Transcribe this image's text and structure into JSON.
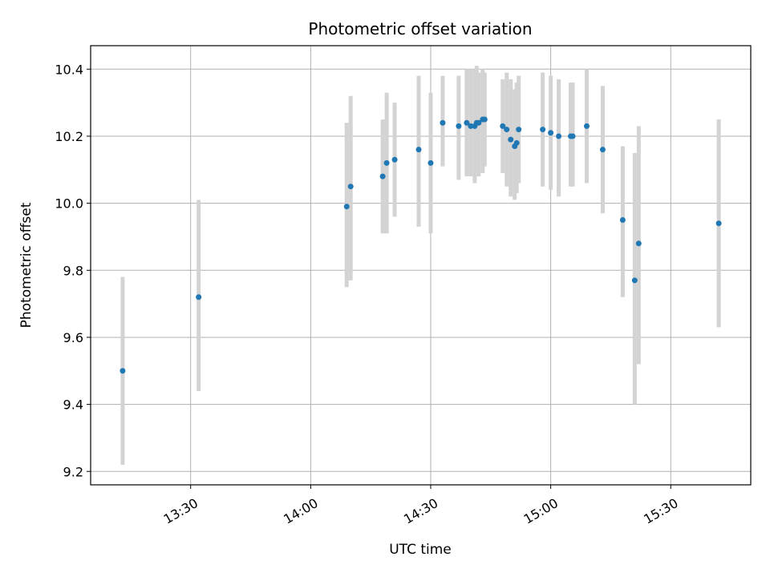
{
  "chart_data": {
    "type": "scatter",
    "title": "Photometric offset variation",
    "xlabel": "UTC time",
    "ylabel": "Photometric offset",
    "x_ticks": [
      "13:30",
      "14:00",
      "14:30",
      "15:00",
      "15:30"
    ],
    "y_ticks": [
      "9.2",
      "9.4",
      "9.6",
      "9.8",
      "10.0",
      "10.2",
      "10.4"
    ],
    "xlim": [
      "13:05",
      "15:50"
    ],
    "ylim": [
      9.16,
      10.47
    ],
    "grid": true,
    "point_color": "#1f77b4",
    "errorbar_color": "#d3d3d3",
    "points": [
      {
        "t": "13:13",
        "y": 9.5,
        "lo": 9.22,
        "hi": 9.78
      },
      {
        "t": "13:32",
        "y": 9.72,
        "lo": 9.44,
        "hi": 10.01
      },
      {
        "t": "14:09",
        "y": 9.99,
        "lo": 9.75,
        "hi": 10.24
      },
      {
        "t": "14:10",
        "y": 10.05,
        "lo": 9.77,
        "hi": 10.32
      },
      {
        "t": "14:18",
        "y": 10.08,
        "lo": 9.91,
        "hi": 10.25
      },
      {
        "t": "14:19",
        "y": 10.12,
        "lo": 9.91,
        "hi": 10.33
      },
      {
        "t": "14:21",
        "y": 10.13,
        "lo": 9.96,
        "hi": 10.3
      },
      {
        "t": "14:27",
        "y": 10.16,
        "lo": 9.93,
        "hi": 10.38
      },
      {
        "t": "14:30",
        "y": 10.12,
        "lo": 9.91,
        "hi": 10.33
      },
      {
        "t": "14:33",
        "y": 10.24,
        "lo": 10.11,
        "hi": 10.38
      },
      {
        "t": "14:37",
        "y": 10.23,
        "lo": 10.07,
        "hi": 10.38
      },
      {
        "t": "14:39",
        "y": 10.24,
        "lo": 10.08,
        "hi": 10.4
      },
      {
        "t": "14:40",
        "y": 10.23,
        "lo": 10.08,
        "hi": 10.4
      },
      {
        "t": "14:41",
        "y": 10.23,
        "lo": 10.06,
        "hi": 10.4
      },
      {
        "t": "14:41.5",
        "y": 10.24,
        "lo": 10.08,
        "hi": 10.41
      },
      {
        "t": "14:42",
        "y": 10.24,
        "lo": 10.08,
        "hi": 10.39
      },
      {
        "t": "14:43",
        "y": 10.25,
        "lo": 10.09,
        "hi": 10.4
      },
      {
        "t": "14:43.5",
        "y": 10.25,
        "lo": 10.11,
        "hi": 10.39
      },
      {
        "t": "14:48",
        "y": 10.23,
        "lo": 10.09,
        "hi": 10.37
      },
      {
        "t": "14:49",
        "y": 10.22,
        "lo": 10.05,
        "hi": 10.39
      },
      {
        "t": "14:50",
        "y": 10.19,
        "lo": 10.02,
        "hi": 10.37
      },
      {
        "t": "14:51",
        "y": 10.17,
        "lo": 10.01,
        "hi": 10.34
      },
      {
        "t": "14:51.5",
        "y": 10.18,
        "lo": 10.03,
        "hi": 10.36
      },
      {
        "t": "14:52",
        "y": 10.22,
        "lo": 10.06,
        "hi": 10.38
      },
      {
        "t": "14:58",
        "y": 10.22,
        "lo": 10.05,
        "hi": 10.39
      },
      {
        "t": "15:00",
        "y": 10.21,
        "lo": 10.04,
        "hi": 10.38
      },
      {
        "t": "15:02",
        "y": 10.2,
        "lo": 10.02,
        "hi": 10.37
      },
      {
        "t": "15:05",
        "y": 10.2,
        "lo": 10.05,
        "hi": 10.36
      },
      {
        "t": "15:05.5",
        "y": 10.2,
        "lo": 10.05,
        "hi": 10.36
      },
      {
        "t": "15:09",
        "y": 10.23,
        "lo": 10.06,
        "hi": 10.4
      },
      {
        "t": "15:13",
        "y": 10.16,
        "lo": 9.97,
        "hi": 10.35
      },
      {
        "t": "15:18",
        "y": 9.95,
        "lo": 9.72,
        "hi": 10.17
      },
      {
        "t": "15:21",
        "y": 9.77,
        "lo": 9.4,
        "hi": 10.15
      },
      {
        "t": "15:22",
        "y": 9.88,
        "lo": 9.52,
        "hi": 10.23
      },
      {
        "t": "15:42",
        "y": 9.94,
        "lo": 9.63,
        "hi": 10.25
      }
    ]
  }
}
